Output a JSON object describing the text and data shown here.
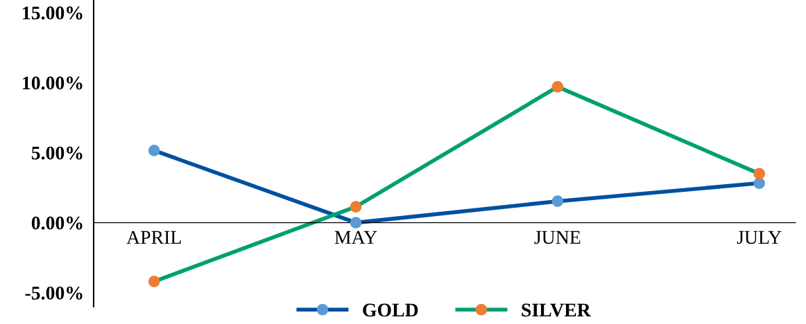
{
  "chart_data": {
    "type": "line",
    "categories": [
      "APRIL",
      "MAY",
      "JUNE",
      "JULY"
    ],
    "series": [
      {
        "name": "GOLD",
        "color": "#0050a0",
        "colors": [
          "#5b9bd5",
          "#5b9bd5",
          "#5b9bd5",
          "#5b9bd5"
        ],
        "values": [
          5.15,
          0.0,
          1.53,
          2.82
        ]
      },
      {
        "name": "SILVER",
        "color": "#00a070",
        "colors": [
          "#ed7d31",
          "#ed7d31",
          "#ed7d31",
          "#ed7d31"
        ],
        "values": [
          -4.2,
          1.14,
          9.7,
          3.5
        ]
      }
    ],
    "ylim": [
      -6,
      15.9
    ],
    "yticks": [
      {
        "value": -5,
        "label": "-5.00%"
      },
      {
        "value": 0,
        "label": "0.00%"
      },
      {
        "value": 5,
        "label": "5.00%"
      },
      {
        "value": 10,
        "label": "10.00%"
      },
      {
        "value": 15,
        "label": "15.00%"
      }
    ],
    "grid": false,
    "legend": "bottom",
    "marker": "circle",
    "line_style": "solid"
  }
}
